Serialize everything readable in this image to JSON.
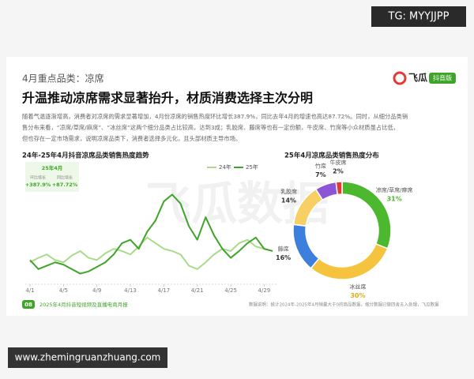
{
  "tag": "TG: MYYJJPP",
  "website": "www.zhemingruanzhuang.com",
  "section": "4月重点品类：凉席",
  "brand": {
    "name": "飞瓜",
    "badge": "抖音版"
  },
  "watermark": "飞瓜数据",
  "headline": "升温推动凉席需求显著抬升，材质消费选择主次分明",
  "paragraph": [
    "随着气温逐渐增高，消费者对凉席的需求显著增加，4月份凉席的销售热度环比增长387.9%，同比去年4月的增速也高达87.72%。同时，从细分品类销",
    "售分布来看，“凉席/草席/麻席”、“冰丝席”这两个细分品类占比较高，达到3成；乳胶席、藤席等也有一定份额，牛皮席、竹席等小众材质虽占比低，",
    "但也存在一定市场需求，说明凉席品类下，消费者选择多元化，且头部材质主导市场。"
  ],
  "footer": {
    "page": "08",
    "title": "2025年4月抖音短视频及直播电商月报",
    "note": "数据说明：统计2024年-2025年4月销量大于0的商品数据，细分数据已做四舍五入处理，飞瓜数据"
  },
  "chart_data": [
    {
      "type": "line",
      "title": "24年-25年4月抖音凉席品类销售热度趋势",
      "annotation": {
        "title": "25年4月",
        "items": [
          {
            "label": "环比增长",
            "value": "+387.9%"
          },
          {
            "label": "同比增长",
            "value": "+87.72%"
          }
        ]
      },
      "categories": [
        "4/1",
        null,
        null,
        null,
        "4/5",
        null,
        null,
        null,
        "4/9",
        null,
        null,
        null,
        "4/13",
        null,
        null,
        null,
        "4/17",
        null,
        null,
        null,
        "4/21",
        null,
        null,
        null,
        "4/25",
        null,
        null,
        null,
        "4/29",
        null
      ],
      "ylim": [
        0,
        100
      ],
      "series": [
        {
          "name": "24年",
          "color": "#a8dc8a",
          "values": [
            18,
            22,
            25,
            20,
            18,
            24,
            28,
            22,
            20,
            26,
            30,
            28,
            25,
            32,
            40,
            35,
            30,
            28,
            25,
            15,
            12,
            18,
            25,
            30,
            28,
            35,
            38,
            32,
            30,
            28
          ]
        },
        {
          "name": "25年",
          "color": "#3fa52a",
          "values": [
            20,
            12,
            15,
            18,
            16,
            12,
            8,
            10,
            14,
            18,
            25,
            35,
            38,
            30,
            45,
            55,
            72,
            78,
            70,
            50,
            38,
            58,
            42,
            30,
            22,
            28,
            35,
            40,
            30,
            28
          ]
        }
      ]
    },
    {
      "type": "pie",
      "title": "25年4月凉席品类销售热度分布",
      "categories": [
        "凉席/草席/麻席",
        "冰丝席",
        "藤席",
        "乳胶席",
        "竹席",
        "牛皮席"
      ],
      "values": [
        31,
        30,
        16,
        14,
        7,
        2
      ],
      "value_labels": [
        "31%",
        "30%",
        "16%",
        "14%",
        "7%",
        "2%"
      ],
      "colors": [
        "#4cb82e",
        "#f5c33d",
        "#3d7fdc",
        "#f7cf65",
        "#8b55d6",
        "#e53935"
      ],
      "label_colors": [
        "#4cb82e",
        "#e8a817",
        "#333333",
        "#333333",
        "#333333",
        "#333333"
      ]
    }
  ]
}
